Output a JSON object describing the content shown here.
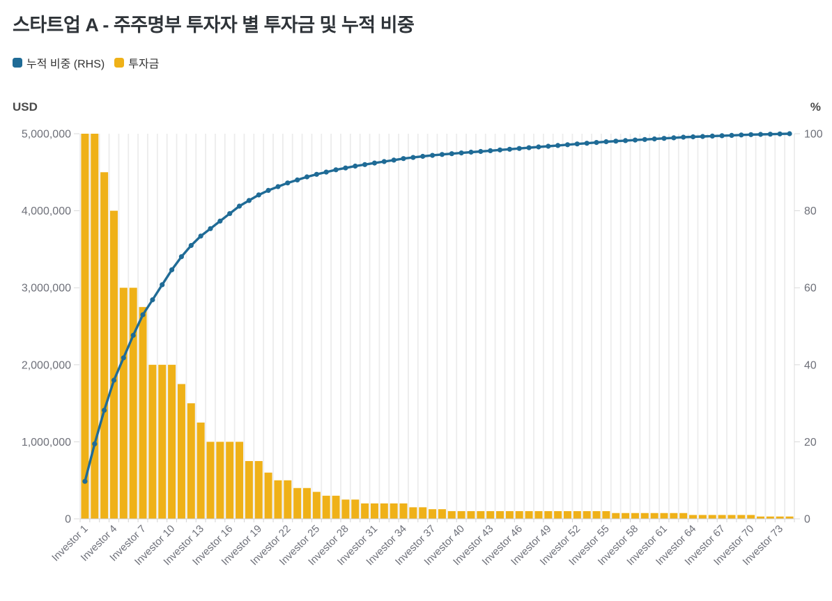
{
  "header": {
    "title": "스타트업 A - 주주명부 투자자 별 투자금 및 누적 비중"
  },
  "legend": {
    "items": [
      {
        "label": "누적 비중 (RHS)",
        "color": "#1f6b96"
      },
      {
        "label": "투자금",
        "color": "#efb118"
      }
    ]
  },
  "chart_data": {
    "type": "pareto (bar + cumulative line)",
    "title": "스타트업 A - 주주명부 투자자 별 투자금 및 누적 비중",
    "left_axis": {
      "title": "USD",
      "min": 0,
      "max": 5000000,
      "tick_step": 1000000,
      "tick_labels": [
        "0",
        "1,000,000",
        "2,000,000",
        "3,000,000",
        "4,000,000",
        "5,000,000"
      ]
    },
    "right_axis": {
      "title": "%",
      "min": 0,
      "max": 100,
      "tick_step": 20,
      "tick_labels": [
        "0",
        "20",
        "40",
        "60",
        "80",
        "100"
      ]
    },
    "x_axis": {
      "label_every": 3,
      "rotation_deg": -45,
      "first_label": "Investor 1",
      "last_label": "Investor 73"
    },
    "grid": {
      "vertical_gridlines": true,
      "horizontal_gridlines": false
    },
    "legend_position": "top-left",
    "categories": [
      "Investor 1",
      "Investor 2",
      "Investor 3",
      "Investor 4",
      "Investor 5",
      "Investor 6",
      "Investor 7",
      "Investor 8",
      "Investor 9",
      "Investor 10",
      "Investor 11",
      "Investor 12",
      "Investor 13",
      "Investor 14",
      "Investor 15",
      "Investor 16",
      "Investor 17",
      "Investor 18",
      "Investor 19",
      "Investor 20",
      "Investor 21",
      "Investor 22",
      "Investor 23",
      "Investor 24",
      "Investor 25",
      "Investor 26",
      "Investor 27",
      "Investor 28",
      "Investor 29",
      "Investor 30",
      "Investor 31",
      "Investor 32",
      "Investor 33",
      "Investor 34",
      "Investor 35",
      "Investor 36",
      "Investor 37",
      "Investor 38",
      "Investor 39",
      "Investor 40",
      "Investor 41",
      "Investor 42",
      "Investor 43",
      "Investor 44",
      "Investor 45",
      "Investor 46",
      "Investor 47",
      "Investor 48",
      "Investor 49",
      "Investor 50",
      "Investor 51",
      "Investor 52",
      "Investor 53",
      "Investor 54",
      "Investor 55",
      "Investor 56",
      "Investor 57",
      "Investor 58",
      "Investor 59",
      "Investor 60",
      "Investor 61",
      "Investor 62",
      "Investor 63",
      "Investor 64",
      "Investor 65",
      "Investor 66",
      "Investor 67",
      "Investor 68",
      "Investor 69",
      "Investor 70",
      "Investor 71",
      "Investor 72",
      "Investor 73",
      "Investor 74"
    ],
    "series": [
      {
        "name": "투자금",
        "type": "bar",
        "axis": "left",
        "color": "#efb118",
        "values": [
          5000000,
          5000000,
          4500000,
          4000000,
          3000000,
          3000000,
          2750000,
          2000000,
          2000000,
          2000000,
          1750000,
          1500000,
          1250000,
          1000000,
          1000000,
          1000000,
          1000000,
          750000,
          750000,
          600000,
          500000,
          500000,
          400000,
          400000,
          350000,
          300000,
          300000,
          250000,
          250000,
          200000,
          200000,
          200000,
          200000,
          200000,
          150000,
          150000,
          125000,
          125000,
          100000,
          100000,
          100000,
          100000,
          100000,
          100000,
          100000,
          100000,
          100000,
          100000,
          100000,
          100000,
          100000,
          100000,
          100000,
          100000,
          100000,
          75000,
          75000,
          75000,
          75000,
          75000,
          75000,
          75000,
          75000,
          50000,
          50000,
          50000,
          50000,
          50000,
          50000,
          50000,
          30000,
          30000,
          30000,
          30000
        ]
      },
      {
        "name": "누적 비중 (RHS)",
        "type": "line",
        "axis": "right",
        "color": "#1f6b96",
        "derived_from": "cumulative share of total 투자금",
        "values_pct": [
          9.72,
          19.45,
          28.2,
          35.98,
          41.81,
          47.65,
          52.99,
          56.88,
          60.77,
          64.66,
          68.07,
          70.98,
          73.41,
          75.36,
          77.3,
          79.25,
          81.19,
          82.65,
          84.11,
          85.28,
          86.25,
          87.22,
          88.0,
          88.78,
          89.46,
          90.04,
          90.63,
          91.11,
          91.6,
          91.99,
          92.38,
          92.77,
          93.15,
          93.54,
          93.84,
          94.13,
          94.37,
          94.61,
          94.81,
          95.0,
          95.2,
          95.39,
          95.59,
          95.78,
          95.97,
          96.17,
          96.36,
          96.56,
          96.75,
          96.95,
          97.14,
          97.34,
          97.53,
          97.72,
          97.92,
          98.06,
          98.21,
          98.36,
          98.5,
          98.65,
          98.79,
          98.94,
          99.09,
          99.18,
          99.28,
          99.38,
          99.47,
          99.57,
          99.67,
          99.77,
          99.82,
          99.88,
          99.94,
          100.0
        ]
      }
    ]
  }
}
